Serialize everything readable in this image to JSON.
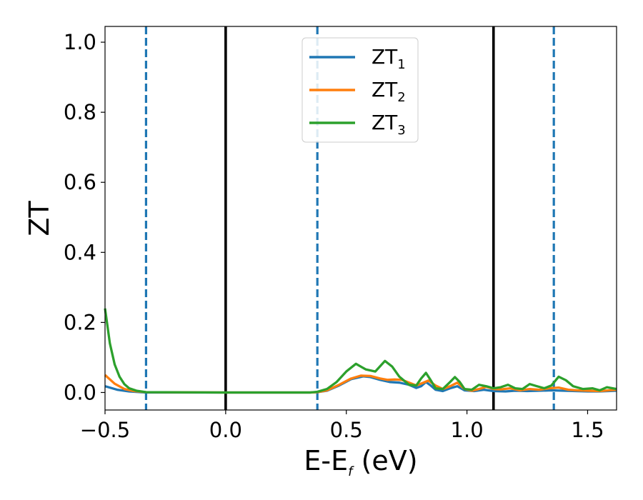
{
  "chart_data": {
    "type": "line",
    "xlabel": "E-E",
    "xlabel_subscript": "f",
    "xlabel_unit": " (eV)",
    "ylabel": "ZT",
    "xlim": [
      -0.5,
      1.62
    ],
    "ylim": [
      -0.05,
      1.045
    ],
    "xticks": [
      -0.5,
      0.0,
      0.5,
      1.0,
      1.5
    ],
    "xtick_labels": [
      "−0.5",
      "0.0",
      "0.5",
      "1.0",
      "1.5"
    ],
    "yticks": [
      0.0,
      0.2,
      0.4,
      0.6,
      0.8,
      1.0
    ],
    "ytick_labels": [
      "0.0",
      "0.2",
      "0.4",
      "0.6",
      "0.8",
      "1.0"
    ],
    "grid": false,
    "legend_position": "top-center",
    "vertical_lines": [
      {
        "x": -0.33,
        "style": "dashed",
        "color": "#1f77b4"
      },
      {
        "x": 0.0,
        "style": "solid",
        "color": "#000000"
      },
      {
        "x": 0.38,
        "style": "dashed",
        "color": "#1f77b4"
      },
      {
        "x": 1.11,
        "style": "solid",
        "color": "#000000"
      },
      {
        "x": 1.36,
        "style": "dashed",
        "color": "#1f77b4"
      }
    ],
    "series": [
      {
        "name": "ZT",
        "name_subscript": "1",
        "color": "#1f77b4",
        "points": [
          [
            -0.5,
            0.018
          ],
          [
            -0.45,
            0.008
          ],
          [
            -0.4,
            0.003
          ],
          [
            -0.33,
            0.0
          ],
          [
            0.0,
            0.0
          ],
          [
            0.35,
            0.0
          ],
          [
            0.38,
            0.001
          ],
          [
            0.42,
            0.005
          ],
          [
            0.47,
            0.02
          ],
          [
            0.52,
            0.038
          ],
          [
            0.57,
            0.046
          ],
          [
            0.6,
            0.044
          ],
          [
            0.64,
            0.036
          ],
          [
            0.68,
            0.03
          ],
          [
            0.72,
            0.028
          ],
          [
            0.76,
            0.022
          ],
          [
            0.79,
            0.013
          ],
          [
            0.81,
            0.018
          ],
          [
            0.83,
            0.03
          ],
          [
            0.85,
            0.02
          ],
          [
            0.87,
            0.008
          ],
          [
            0.9,
            0.004
          ],
          [
            0.93,
            0.012
          ],
          [
            0.96,
            0.018
          ],
          [
            0.99,
            0.006
          ],
          [
            1.03,
            0.004
          ],
          [
            1.07,
            0.008
          ],
          [
            1.11,
            0.004
          ],
          [
            1.16,
            0.003
          ],
          [
            1.2,
            0.005
          ],
          [
            1.25,
            0.004
          ],
          [
            1.3,
            0.005
          ],
          [
            1.35,
            0.006
          ],
          [
            1.4,
            0.005
          ],
          [
            1.45,
            0.004
          ],
          [
            1.5,
            0.003
          ],
          [
            1.55,
            0.003
          ],
          [
            1.62,
            0.005
          ]
        ]
      },
      {
        "name": "ZT",
        "name_subscript": "2",
        "color": "#ff7f0e",
        "points": [
          [
            -0.5,
            0.05
          ],
          [
            -0.46,
            0.025
          ],
          [
            -0.42,
            0.01
          ],
          [
            -0.38,
            0.004
          ],
          [
            -0.33,
            0.001
          ],
          [
            0.0,
            0.0
          ],
          [
            0.35,
            0.0
          ],
          [
            0.38,
            0.001
          ],
          [
            0.42,
            0.006
          ],
          [
            0.47,
            0.022
          ],
          [
            0.52,
            0.04
          ],
          [
            0.56,
            0.048
          ],
          [
            0.6,
            0.047
          ],
          [
            0.64,
            0.04
          ],
          [
            0.67,
            0.036
          ],
          [
            0.7,
            0.037
          ],
          [
            0.73,
            0.036
          ],
          [
            0.76,
            0.028
          ],
          [
            0.79,
            0.02
          ],
          [
            0.82,
            0.028
          ],
          [
            0.84,
            0.034
          ],
          [
            0.87,
            0.02
          ],
          [
            0.9,
            0.01
          ],
          [
            0.93,
            0.018
          ],
          [
            0.96,
            0.028
          ],
          [
            0.99,
            0.01
          ],
          [
            1.02,
            0.005
          ],
          [
            1.05,
            0.01
          ],
          [
            1.08,
            0.016
          ],
          [
            1.11,
            0.01
          ],
          [
            1.14,
            0.009
          ],
          [
            1.18,
            0.012
          ],
          [
            1.22,
            0.006
          ],
          [
            1.26,
            0.01
          ],
          [
            1.3,
            0.008
          ],
          [
            1.34,
            0.012
          ],
          [
            1.38,
            0.014
          ],
          [
            1.42,
            0.008
          ],
          [
            1.46,
            0.006
          ],
          [
            1.5,
            0.005
          ],
          [
            1.55,
            0.004
          ],
          [
            1.62,
            0.008
          ]
        ]
      },
      {
        "name": "ZT",
        "name_subscript": "3",
        "color": "#2ca02c",
        "points": [
          [
            -0.5,
            0.24
          ],
          [
            -0.48,
            0.14
          ],
          [
            -0.46,
            0.08
          ],
          [
            -0.44,
            0.045
          ],
          [
            -0.42,
            0.024
          ],
          [
            -0.4,
            0.012
          ],
          [
            -0.37,
            0.005
          ],
          [
            -0.33,
            0.001
          ],
          [
            0.0,
            0.0
          ],
          [
            0.35,
            0.0
          ],
          [
            0.38,
            0.002
          ],
          [
            0.42,
            0.01
          ],
          [
            0.46,
            0.03
          ],
          [
            0.5,
            0.06
          ],
          [
            0.54,
            0.082
          ],
          [
            0.58,
            0.066
          ],
          [
            0.62,
            0.06
          ],
          [
            0.66,
            0.09
          ],
          [
            0.69,
            0.074
          ],
          [
            0.72,
            0.045
          ],
          [
            0.76,
            0.022
          ],
          [
            0.79,
            0.02
          ],
          [
            0.81,
            0.04
          ],
          [
            0.83,
            0.056
          ],
          [
            0.85,
            0.035
          ],
          [
            0.87,
            0.012
          ],
          [
            0.9,
            0.01
          ],
          [
            0.93,
            0.03
          ],
          [
            0.95,
            0.044
          ],
          [
            0.97,
            0.03
          ],
          [
            0.99,
            0.01
          ],
          [
            1.02,
            0.008
          ],
          [
            1.05,
            0.022
          ],
          [
            1.08,
            0.018
          ],
          [
            1.11,
            0.012
          ],
          [
            1.14,
            0.015
          ],
          [
            1.17,
            0.022
          ],
          [
            1.2,
            0.012
          ],
          [
            1.23,
            0.01
          ],
          [
            1.26,
            0.024
          ],
          [
            1.29,
            0.018
          ],
          [
            1.32,
            0.012
          ],
          [
            1.35,
            0.02
          ],
          [
            1.38,
            0.045
          ],
          [
            1.41,
            0.035
          ],
          [
            1.44,
            0.018
          ],
          [
            1.48,
            0.01
          ],
          [
            1.52,
            0.012
          ],
          [
            1.55,
            0.006
          ],
          [
            1.58,
            0.015
          ],
          [
            1.62,
            0.01
          ]
        ]
      }
    ]
  }
}
